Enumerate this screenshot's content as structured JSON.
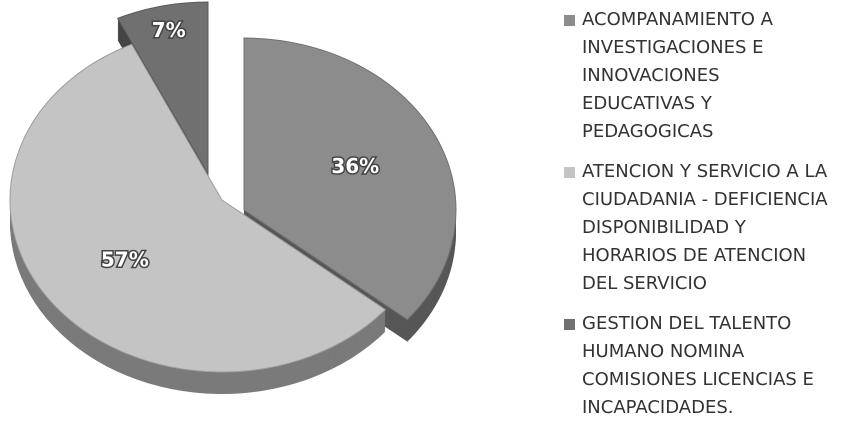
{
  "chart_data": {
    "type": "pie",
    "categories": [
      "ACOMPANAMIENTO A INVESTIGACIONES E INNOVACIONES EDUCATIVAS Y PEDAGOGICAS",
      "ATENCION Y SERVICIO A LA CIUDADANIA - DEFICIENCIA DISPONIBILIDAD Y HORARIOS DE ATENCION DEL SERVICIO",
      "GESTION DEL TALENTO HUMANO  NOMINA COMISIONES  LICENCIAS E INCAPACIDADES."
    ],
    "values": [
      36,
      57,
      7
    ],
    "value_labels": [
      "36%",
      "57%",
      "7%"
    ],
    "colors": [
      "#8c8c8c",
      "#c4c4c4",
      "#707070"
    ],
    "legend": "right"
  }
}
